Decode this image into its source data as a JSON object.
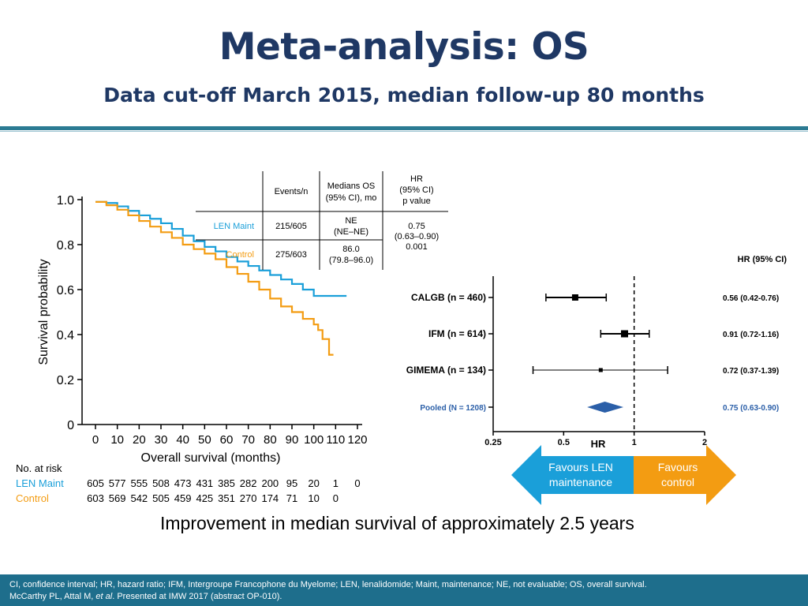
{
  "title": "Meta-analysis: OS",
  "subtitle": "Data cut-off March 2015, median follow-up 80 months",
  "chart_data": [
    {
      "type": "line",
      "xlabel": "Overall survival (months)",
      "ylabel": "Survival probability",
      "xticks": [
        "0",
        "10",
        "20",
        "30",
        "40",
        "50",
        "60",
        "70",
        "80",
        "90",
        "100",
        "110",
        "120"
      ],
      "yticks": [
        "0",
        "0.2",
        "0.4",
        "0.6",
        "0.8",
        "1.0"
      ],
      "xlim": [
        0,
        120
      ],
      "ylim": [
        0,
        1.0
      ],
      "series": [
        {
          "name": "LEN Maint",
          "color": "#1a9fd9",
          "points": [
            [
              0,
              0.99
            ],
            [
              5,
              0.985
            ],
            [
              10,
              0.97
            ],
            [
              15,
              0.95
            ],
            [
              20,
              0.93
            ],
            [
              25,
              0.915
            ],
            [
              30,
              0.895
            ],
            [
              35,
              0.87
            ],
            [
              40,
              0.84
            ],
            [
              45,
              0.815
            ],
            [
              50,
              0.79
            ],
            [
              55,
              0.77
            ],
            [
              60,
              0.745
            ],
            [
              65,
              0.725
            ],
            [
              70,
              0.705
            ],
            [
              75,
              0.685
            ],
            [
              80,
              0.665
            ],
            [
              85,
              0.645
            ],
            [
              90,
              0.625
            ],
            [
              95,
              0.6
            ],
            [
              100,
              0.572
            ],
            [
              105,
              0.572
            ],
            [
              110,
              0.572
            ],
            [
              115,
              0.572
            ]
          ]
        },
        {
          "name": "Control",
          "color": "#f39c12",
          "points": [
            [
              0,
              0.99
            ],
            [
              5,
              0.975
            ],
            [
              10,
              0.955
            ],
            [
              15,
              0.93
            ],
            [
              20,
              0.905
            ],
            [
              25,
              0.88
            ],
            [
              30,
              0.855
            ],
            [
              35,
              0.83
            ],
            [
              40,
              0.8
            ],
            [
              45,
              0.78
            ],
            [
              50,
              0.76
            ],
            [
              55,
              0.735
            ],
            [
              60,
              0.7
            ],
            [
              65,
              0.67
            ],
            [
              70,
              0.635
            ],
            [
              75,
              0.6
            ],
            [
              80,
              0.56
            ],
            [
              85,
              0.525
            ],
            [
              90,
              0.5
            ],
            [
              95,
              0.47
            ],
            [
              100,
              0.445
            ],
            [
              102,
              0.42
            ],
            [
              104,
              0.38
            ],
            [
              106,
              0.38
            ],
            [
              107,
              0.31
            ],
            [
              109,
              0.31
            ]
          ]
        }
      ]
    },
    {
      "type": "forest",
      "xlabel": "HR",
      "xticks": [
        "0.25",
        "0.5",
        "1",
        "2"
      ],
      "xlim": [
        0.25,
        2
      ],
      "reference": 1,
      "column_header": "HR (95% CI)",
      "rows": [
        {
          "label": "CALGB (n = 460)",
          "hr": 0.56,
          "lo": 0.42,
          "hi": 0.76,
          "text": "0.56 (0.42-0.76)"
        },
        {
          "label": "IFM (n = 614)",
          "hr": 0.91,
          "lo": 0.72,
          "hi": 1.16,
          "text": "0.91 (0.72-1.16)"
        },
        {
          "label": "GIMEMA (n = 134)",
          "hr": 0.72,
          "lo": 0.37,
          "hi": 1.39,
          "text": "0.72 (0.37-1.39)"
        },
        {
          "label": "Pooled (N = 1208)",
          "hr": 0.75,
          "lo": 0.63,
          "hi": 0.9,
          "text": "0.75 (0.63-0.90)",
          "pooled": true
        }
      ],
      "favours_left": [
        "Favours LEN",
        "maintenance"
      ],
      "favours_right": [
        "Favours",
        "control"
      ]
    }
  ],
  "summary_table": {
    "headers": [
      "Events/n",
      [
        "Medians OS",
        "(95% CI), mo"
      ],
      [
        "HR",
        "(95% CI)",
        "p value"
      ]
    ],
    "rows": [
      {
        "label": "LEN Maint",
        "events": "215/605",
        "median": [
          "NE",
          "(NE–NE)"
        ]
      },
      {
        "label": "Control",
        "events": "275/603",
        "median": [
          "86.0",
          "(79.8–96.0)"
        ]
      }
    ],
    "hr": [
      "0.75",
      "(0.63–0.90)",
      "0.001"
    ]
  },
  "at_risk": {
    "title": "No. at risk",
    "rows": [
      {
        "label": "LEN Maint",
        "values": [
          "605",
          "577",
          "555",
          "508",
          "473",
          "431",
          "385",
          "282",
          "200",
          "95",
          "20",
          "1",
          "0"
        ]
      },
      {
        "label": "Control",
        "values": [
          "603",
          "569",
          "542",
          "505",
          "459",
          "425",
          "351",
          "270",
          "174",
          "71",
          "10",
          "0"
        ]
      }
    ]
  },
  "improvement": "Improvement in median survival of approximately 2.5 years",
  "footer": {
    "line1": "CI, confidence interval; HR, hazard ratio; IFM, Intergroupe Francophone du Myelome; LEN, lenalidomide; Maint, maintenance; NE, not evaluable; OS, overall survival.",
    "line2_prefix": "McCarthy PL, Attal M, ",
    "line2_italic": "et al",
    "line2_suffix": ". Presented at IMW 2017 (abstract OP-010)."
  },
  "colors": {
    "title": "#1f3864",
    "len": "#1a9fd9",
    "control": "#f39c12",
    "footer_bg": "#1e6e8c",
    "pooled": "#2b5fa8"
  }
}
